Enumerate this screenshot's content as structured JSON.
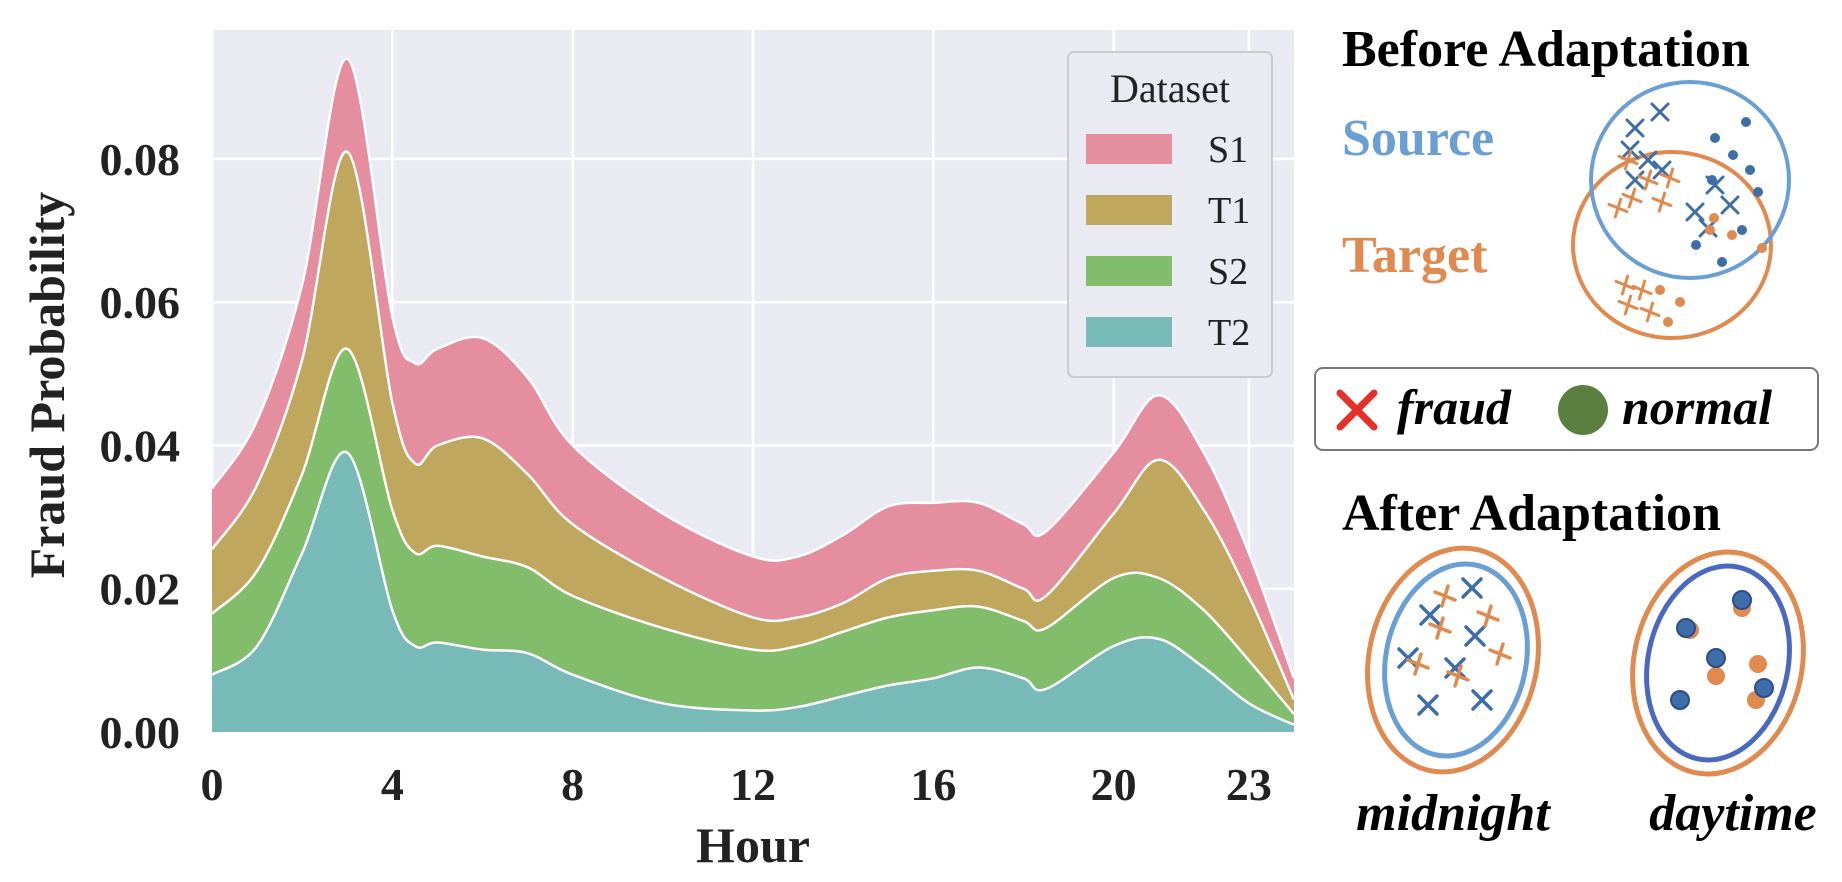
{
  "chart_data": {
    "type": "area",
    "stacked": true,
    "xlabel": "Hour",
    "ylabel": "Fraud Probability",
    "xlim": [
      0,
      24
    ],
    "ylim": [
      0,
      0.098
    ],
    "xticks": [
      0,
      4,
      8,
      12,
      16,
      20,
      23
    ],
    "yticks": [
      0.0,
      0.02,
      0.04,
      0.06,
      0.08
    ],
    "ytick_labels": [
      "0.00",
      "0.02",
      "0.04",
      "0.06",
      "0.08"
    ],
    "grid": true,
    "legend": {
      "title": "Dataset",
      "placement": "top-right"
    },
    "x": [
      0,
      1,
      2,
      3,
      4,
      4.5,
      5,
      6,
      7,
      8,
      10,
      12,
      13,
      14,
      15,
      16,
      17,
      18,
      18.5,
      20,
      21,
      22,
      23,
      24
    ],
    "series": [
      {
        "name": "S1",
        "color": "#e48ea0",
        "values": [
          0.0085,
          0.009,
          0.0105,
          0.013,
          0.012,
          0.014,
          0.0135,
          0.014,
          0.0135,
          0.011,
          0.009,
          0.0085,
          0.0085,
          0.0095,
          0.01,
          0.0095,
          0.0095,
          0.009,
          0.009,
          0.0085,
          0.009,
          0.008,
          0.006,
          0.003
        ]
      },
      {
        "name": "T1",
        "color": "#bfa75e",
        "values": [
          0.009,
          0.012,
          0.016,
          0.0275,
          0.015,
          0.0125,
          0.014,
          0.0165,
          0.013,
          0.01,
          0.007,
          0.0045,
          0.004,
          0.004,
          0.0055,
          0.0055,
          0.005,
          0.0045,
          0.0045,
          0.009,
          0.0165,
          0.014,
          0.009,
          0.002
        ]
      },
      {
        "name": "S2",
        "color": "#82bd6c",
        "values": [
          0.0085,
          0.0105,
          0.011,
          0.0145,
          0.014,
          0.013,
          0.0135,
          0.013,
          0.012,
          0.011,
          0.0105,
          0.0085,
          0.0085,
          0.009,
          0.0095,
          0.0095,
          0.0085,
          0.008,
          0.0085,
          0.0095,
          0.0085,
          0.008,
          0.006,
          0.0015
        ]
      },
      {
        "name": "T2",
        "color": "#77bab7",
        "values": [
          0.008,
          0.012,
          0.025,
          0.039,
          0.017,
          0.012,
          0.0125,
          0.0115,
          0.011,
          0.008,
          0.004,
          0.003,
          0.0035,
          0.005,
          0.0065,
          0.0075,
          0.009,
          0.0075,
          0.006,
          0.012,
          0.013,
          0.009,
          0.004,
          0.001
        ]
      }
    ]
  },
  "schematic": {
    "before_title": "Before Adaptation",
    "source_label": "Source",
    "target_label": "Target",
    "key_fraud": "fraud",
    "key_normal": "normal",
    "after_title": "After Adaptation",
    "midnight_label": "midnight",
    "daytime_label": "daytime",
    "colors": {
      "source": "#6a9fd4",
      "target": "#e08a4f",
      "source_marker": "#3e6ea8",
      "fraud_key": "#e5302a",
      "normal_key": "#5b7f3f",
      "daytime_inner": "#4a68c0"
    }
  }
}
